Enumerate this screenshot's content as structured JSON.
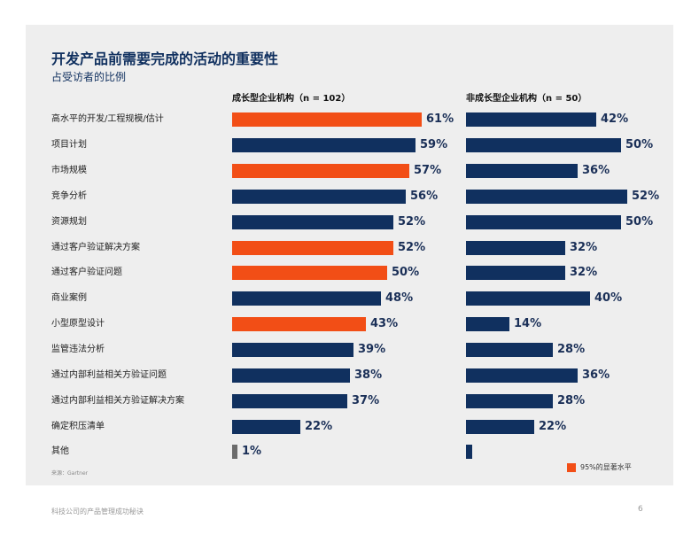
{
  "chart_data": {
    "type": "bar",
    "orientation": "horizontal",
    "title": "开发产品前需要完成的活动的重要性",
    "subtitle": "占受访者的比例",
    "categories": [
      "高水平的开发/工程规模/估计",
      "项目计划",
      "市场规模",
      "竞争分析",
      "资源规划",
      "通过客户验证解决方案",
      "通过客户验证问题",
      "商业案例",
      "小型原型设计",
      "监管违法分析",
      "通过内部利益相关方验证问题",
      "通过内部利益相关方验证解决方案",
      "确定积压清单",
      "其他"
    ],
    "series": [
      {
        "name": "成长型企业机构（n = 102）",
        "values": [
          61,
          59,
          57,
          56,
          52,
          52,
          50,
          48,
          43,
          39,
          38,
          37,
          22,
          1
        ],
        "labels": [
          "61%",
          "59%",
          "57%",
          "56%",
          "52%",
          "52%",
          "50%",
          "48%",
          "43%",
          "39%",
          "38%",
          "37%",
          "22%",
          "1%"
        ],
        "significant": [
          true,
          false,
          true,
          false,
          false,
          true,
          true,
          false,
          true,
          false,
          false,
          false,
          false,
          false
        ]
      },
      {
        "name": "非成长型企业机构（n = 50）",
        "values": [
          42,
          50,
          36,
          52,
          50,
          32,
          32,
          40,
          14,
          28,
          36,
          28,
          22,
          2
        ],
        "labels": [
          "42%",
          "50%",
          "36%",
          "52%",
          "50%",
          "32%",
          "32%",
          "40%",
          "14%",
          "28%",
          "36%",
          "28%",
          "22%",
          ""
        ],
        "significant": [
          false,
          false,
          false,
          false,
          false,
          false,
          false,
          false,
          false,
          false,
          false,
          false,
          false,
          false
        ]
      }
    ],
    "legend": "95%的显著水平",
    "source": "来源：Gartner",
    "xlim": [
      0,
      100
    ]
  },
  "colors": {
    "normal": "#10305f",
    "significant": "#f24e16",
    "other": "#6b6b6b"
  },
  "footer": {
    "text": "科技公司的产品管理成功秘诀",
    "page": "6"
  }
}
